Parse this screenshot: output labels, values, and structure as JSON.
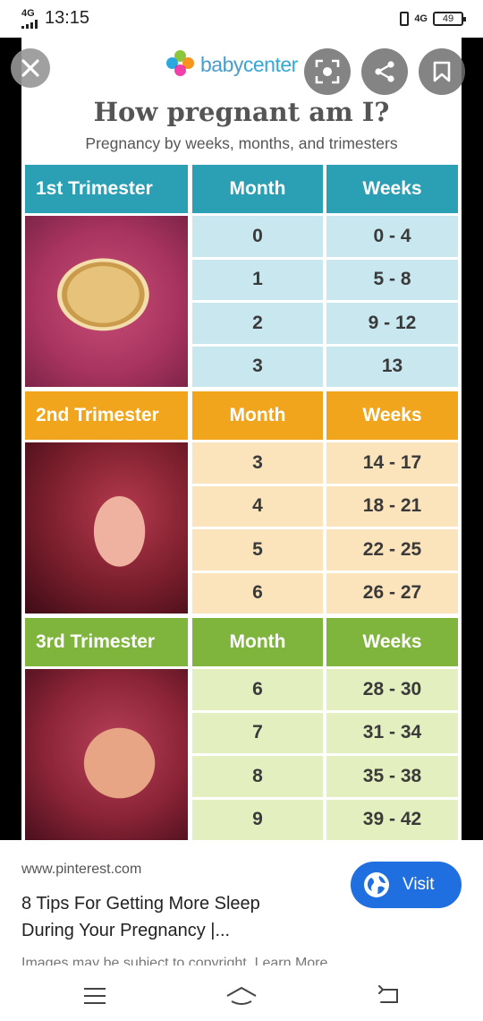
{
  "status": {
    "network_type": "4G",
    "time": "13:15",
    "right_network": "4G",
    "battery": "49"
  },
  "viewer": {
    "logo_text_a": "baby",
    "logo_text_b": "center",
    "icons": [
      "close-icon",
      "lens-search-icon",
      "share-icon",
      "bookmark-icon"
    ]
  },
  "chart": {
    "title": "How pregnant am I?",
    "subtitle": "Pregnancy by weeks, months, and trimesters",
    "trimesters": [
      {
        "label": "1st Trimester",
        "month_header": "Month",
        "weeks_header": "Weeks",
        "header_color": "#2b9fb4",
        "row_color": "#c9e7ef",
        "rows": [
          {
            "month": "0",
            "weeks": "0 - 4"
          },
          {
            "month": "1",
            "weeks": "5 - 8"
          },
          {
            "month": "2",
            "weeks": "9 - 12"
          },
          {
            "month": "3",
            "weeks": "13"
          }
        ]
      },
      {
        "label": "2nd Trimester",
        "month_header": "Month",
        "weeks_header": "Weeks",
        "header_color": "#f0a51c",
        "row_color": "#fbe3bc",
        "rows": [
          {
            "month": "3",
            "weeks": "14 - 17"
          },
          {
            "month": "4",
            "weeks": "18 - 21"
          },
          {
            "month": "5",
            "weeks": "22 - 25"
          },
          {
            "month": "6",
            "weeks": "26 - 27"
          }
        ]
      },
      {
        "label": "3rd Trimester",
        "month_header": "Month",
        "weeks_header": "Weeks",
        "header_color": "#7fb43d",
        "row_color": "#e3efbf",
        "rows": [
          {
            "month": "6",
            "weeks": "28 - 30"
          },
          {
            "month": "7",
            "weeks": "31 - 34"
          },
          {
            "month": "8",
            "weeks": "35 - 38"
          },
          {
            "month": "9",
            "weeks": "39 - 42"
          }
        ]
      }
    ]
  },
  "info": {
    "source": "www.pinterest.com",
    "title": "8 Tips For Getting More Sleep During Your Pregnancy |...",
    "visit_label": "Visit",
    "disclaimer": "Images may be subject to copyright. Learn More"
  },
  "navbar": {
    "icons": [
      "menu-icon",
      "home-icon",
      "back-icon"
    ]
  }
}
